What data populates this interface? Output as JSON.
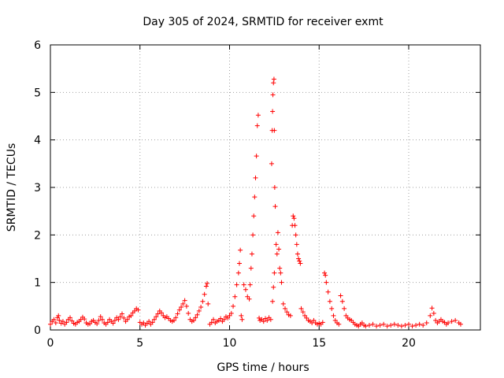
{
  "chart_data": {
    "type": "scatter",
    "title": "Day 305 of 2024, SRMTID for receiver exmt",
    "xlabel": "GPS time / hours",
    "ylabel": "SRMTID / TECUs",
    "xlim": [
      0,
      24
    ],
    "ylim": [
      0,
      6
    ],
    "xticks": [
      0,
      5,
      10,
      15,
      20
    ],
    "yticks": [
      0,
      1,
      2,
      3,
      4,
      5,
      6
    ],
    "grid": true,
    "marker": "+",
    "series_color": "#ff0000",
    "series": [
      {
        "name": "SRMTID",
        "points": [
          [
            0.0,
            0.12
          ],
          [
            0.1,
            0.18
          ],
          [
            0.2,
            0.22
          ],
          [
            0.3,
            0.15
          ],
          [
            0.4,
            0.26
          ],
          [
            0.45,
            0.3
          ],
          [
            0.5,
            0.2
          ],
          [
            0.6,
            0.14
          ],
          [
            0.7,
            0.18
          ],
          [
            0.8,
            0.12
          ],
          [
            0.9,
            0.16
          ],
          [
            1.0,
            0.22
          ],
          [
            1.1,
            0.26
          ],
          [
            1.2,
            0.19
          ],
          [
            1.3,
            0.14
          ],
          [
            1.4,
            0.12
          ],
          [
            1.5,
            0.16
          ],
          [
            1.6,
            0.18
          ],
          [
            1.7,
            0.22
          ],
          [
            1.8,
            0.27
          ],
          [
            1.9,
            0.23
          ],
          [
            2.0,
            0.15
          ],
          [
            2.1,
            0.12
          ],
          [
            2.2,
            0.13
          ],
          [
            2.3,
            0.18
          ],
          [
            2.4,
            0.2
          ],
          [
            2.5,
            0.16
          ],
          [
            2.6,
            0.13
          ],
          [
            2.7,
            0.2
          ],
          [
            2.8,
            0.28
          ],
          [
            2.9,
            0.22
          ],
          [
            3.0,
            0.15
          ],
          [
            3.1,
            0.12
          ],
          [
            3.2,
            0.16
          ],
          [
            3.3,
            0.22
          ],
          [
            3.4,
            0.18
          ],
          [
            3.5,
            0.14
          ],
          [
            3.6,
            0.2
          ],
          [
            3.7,
            0.26
          ],
          [
            3.8,
            0.22
          ],
          [
            3.9,
            0.28
          ],
          [
            4.0,
            0.34
          ],
          [
            4.1,
            0.25
          ],
          [
            4.2,
            0.18
          ],
          [
            4.3,
            0.22
          ],
          [
            4.4,
            0.28
          ],
          [
            4.5,
            0.3
          ],
          [
            4.6,
            0.36
          ],
          [
            4.7,
            0.4
          ],
          [
            4.8,
            0.45
          ],
          [
            4.9,
            0.42
          ],
          [
            5.0,
            0.16
          ],
          [
            5.1,
            0.12
          ],
          [
            5.2,
            0.15
          ],
          [
            5.3,
            0.1
          ],
          [
            5.4,
            0.14
          ],
          [
            5.5,
            0.18
          ],
          [
            5.6,
            0.12
          ],
          [
            5.7,
            0.16
          ],
          [
            5.8,
            0.22
          ],
          [
            5.9,
            0.28
          ],
          [
            6.0,
            0.34
          ],
          [
            6.1,
            0.4
          ],
          [
            6.2,
            0.36
          ],
          [
            6.3,
            0.3
          ],
          [
            6.4,
            0.26
          ],
          [
            6.5,
            0.28
          ],
          [
            6.6,
            0.24
          ],
          [
            6.7,
            0.2
          ],
          [
            6.8,
            0.18
          ],
          [
            6.9,
            0.2
          ],
          [
            7.0,
            0.26
          ],
          [
            7.1,
            0.34
          ],
          [
            7.2,
            0.42
          ],
          [
            7.3,
            0.48
          ],
          [
            7.4,
            0.55
          ],
          [
            7.5,
            0.62
          ],
          [
            7.6,
            0.5
          ],
          [
            7.7,
            0.35
          ],
          [
            7.8,
            0.22
          ],
          [
            7.9,
            0.18
          ],
          [
            8.0,
            0.2
          ],
          [
            8.1,
            0.26
          ],
          [
            8.2,
            0.32
          ],
          [
            8.3,
            0.4
          ],
          [
            8.4,
            0.48
          ],
          [
            8.5,
            0.6
          ],
          [
            8.6,
            0.75
          ],
          [
            8.7,
            0.92
          ],
          [
            8.75,
            0.98
          ],
          [
            8.8,
            0.55
          ],
          [
            8.9,
            0.12
          ],
          [
            9.0,
            0.16
          ],
          [
            9.1,
            0.22
          ],
          [
            9.2,
            0.15
          ],
          [
            9.3,
            0.18
          ],
          [
            9.4,
            0.2
          ],
          [
            9.5,
            0.24
          ],
          [
            9.6,
            0.18
          ],
          [
            9.7,
            0.22
          ],
          [
            9.8,
            0.28
          ],
          [
            9.9,
            0.25
          ],
          [
            10.0,
            0.3
          ],
          [
            10.1,
            0.35
          ],
          [
            10.2,
            0.5
          ],
          [
            10.3,
            0.7
          ],
          [
            10.4,
            0.95
          ],
          [
            10.5,
            1.2
          ],
          [
            10.55,
            1.4
          ],
          [
            10.6,
            1.68
          ],
          [
            10.65,
            0.3
          ],
          [
            10.7,
            0.22
          ],
          [
            10.8,
            0.95
          ],
          [
            10.9,
            0.85
          ],
          [
            11.0,
            0.7
          ],
          [
            11.1,
            0.65
          ],
          [
            11.15,
            0.95
          ],
          [
            11.2,
            1.3
          ],
          [
            11.25,
            1.6
          ],
          [
            11.3,
            2.0
          ],
          [
            11.35,
            2.4
          ],
          [
            11.4,
            2.8
          ],
          [
            11.45,
            3.2
          ],
          [
            11.5,
            3.66
          ],
          [
            11.55,
            4.3
          ],
          [
            11.6,
            4.52
          ],
          [
            11.65,
            0.25
          ],
          [
            11.7,
            0.2
          ],
          [
            11.8,
            0.22
          ],
          [
            11.9,
            0.18
          ],
          [
            12.0,
            0.24
          ],
          [
            12.1,
            0.2
          ],
          [
            12.2,
            0.26
          ],
          [
            12.3,
            0.22
          ],
          [
            12.4,
            0.6
          ],
          [
            12.45,
            0.9
          ],
          [
            12.5,
            1.2
          ],
          [
            12.35,
            3.5
          ],
          [
            12.38,
            4.2
          ],
          [
            12.4,
            4.6
          ],
          [
            12.42,
            4.95
          ],
          [
            12.45,
            5.2
          ],
          [
            12.48,
            5.28
          ],
          [
            12.5,
            4.2
          ],
          [
            12.52,
            3.0
          ],
          [
            12.55,
            2.6
          ],
          [
            12.6,
            1.8
          ],
          [
            12.65,
            1.6
          ],
          [
            12.7,
            2.05
          ],
          [
            12.75,
            1.7
          ],
          [
            12.8,
            1.3
          ],
          [
            12.85,
            1.2
          ],
          [
            12.9,
            1.0
          ],
          [
            13.0,
            0.55
          ],
          [
            13.1,
            0.45
          ],
          [
            13.2,
            0.38
          ],
          [
            13.3,
            0.32
          ],
          [
            13.4,
            0.3
          ],
          [
            13.5,
            2.2
          ],
          [
            13.55,
            2.4
          ],
          [
            13.6,
            2.35
          ],
          [
            13.65,
            2.2
          ],
          [
            13.7,
            2.0
          ],
          [
            13.75,
            1.8
          ],
          [
            13.8,
            1.6
          ],
          [
            13.85,
            1.5
          ],
          [
            13.9,
            1.45
          ],
          [
            13.95,
            1.4
          ],
          [
            14.0,
            0.45
          ],
          [
            14.1,
            0.38
          ],
          [
            14.2,
            0.3
          ],
          [
            14.3,
            0.25
          ],
          [
            14.4,
            0.2
          ],
          [
            14.5,
            0.18
          ],
          [
            14.6,
            0.15
          ],
          [
            14.7,
            0.2
          ],
          [
            14.8,
            0.15
          ],
          [
            14.9,
            0.12
          ],
          [
            15.0,
            0.14
          ],
          [
            15.1,
            0.12
          ],
          [
            15.2,
            0.16
          ],
          [
            15.3,
            1.2
          ],
          [
            15.35,
            1.15
          ],
          [
            15.4,
            1.0
          ],
          [
            15.5,
            0.8
          ],
          [
            15.6,
            0.6
          ],
          [
            15.7,
            0.45
          ],
          [
            15.8,
            0.3
          ],
          [
            15.9,
            0.2
          ],
          [
            16.0,
            0.15
          ],
          [
            16.1,
            0.12
          ],
          [
            16.2,
            0.72
          ],
          [
            16.3,
            0.6
          ],
          [
            16.4,
            0.45
          ],
          [
            16.5,
            0.3
          ],
          [
            16.6,
            0.25
          ],
          [
            16.7,
            0.22
          ],
          [
            16.8,
            0.2
          ],
          [
            16.9,
            0.16
          ],
          [
            17.0,
            0.12
          ],
          [
            17.1,
            0.1
          ],
          [
            17.2,
            0.08
          ],
          [
            17.3,
            0.12
          ],
          [
            17.4,
            0.15
          ],
          [
            17.5,
            0.1
          ],
          [
            17.6,
            0.08
          ],
          [
            17.8,
            0.1
          ],
          [
            18.0,
            0.12
          ],
          [
            18.2,
            0.08
          ],
          [
            18.4,
            0.1
          ],
          [
            18.6,
            0.12
          ],
          [
            18.8,
            0.08
          ],
          [
            19.0,
            0.1
          ],
          [
            19.2,
            0.12
          ],
          [
            19.4,
            0.1
          ],
          [
            19.6,
            0.08
          ],
          [
            19.8,
            0.1
          ],
          [
            20.0,
            0.12
          ],
          [
            20.2,
            0.08
          ],
          [
            20.4,
            0.1
          ],
          [
            20.6,
            0.12
          ],
          [
            20.8,
            0.1
          ],
          [
            21.0,
            0.15
          ],
          [
            21.2,
            0.3
          ],
          [
            21.3,
            0.46
          ],
          [
            21.4,
            0.35
          ],
          [
            21.5,
            0.2
          ],
          [
            21.6,
            0.15
          ],
          [
            21.7,
            0.18
          ],
          [
            21.8,
            0.22
          ],
          [
            21.9,
            0.18
          ],
          [
            22.0,
            0.16
          ],
          [
            22.1,
            0.12
          ],
          [
            22.2,
            0.15
          ],
          [
            22.4,
            0.18
          ],
          [
            22.6,
            0.2
          ],
          [
            22.8,
            0.15
          ],
          [
            22.9,
            0.12
          ]
        ]
      }
    ]
  }
}
